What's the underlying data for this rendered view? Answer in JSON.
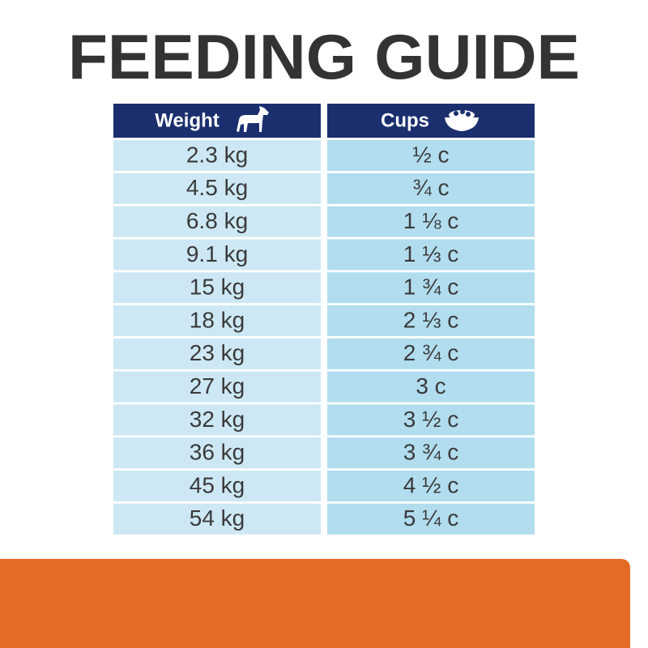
{
  "header": {
    "title": "FEEDING GUIDE"
  },
  "table": {
    "columns": [
      "Weight",
      "Cups"
    ],
    "rows": [
      [
        "2.3 kg",
        "½ c"
      ],
      [
        "4.5 kg",
        "¾ c"
      ],
      [
        "6.8 kg",
        "1 ⅛ c"
      ],
      [
        "9.1 kg",
        "1 ⅓ c"
      ],
      [
        "15 kg",
        "1 ¾ c"
      ],
      [
        "18 kg",
        "2 ⅓ c"
      ],
      [
        "23 kg",
        "2 ¾ c"
      ],
      [
        "27 kg",
        "3 c"
      ],
      [
        "32 kg",
        "3 ½ c"
      ],
      [
        "36 kg",
        "3 ¾ c"
      ],
      [
        "45 kg",
        "4 ½ c"
      ],
      [
        "54 kg",
        "5 ¼ c"
      ]
    ]
  }
}
